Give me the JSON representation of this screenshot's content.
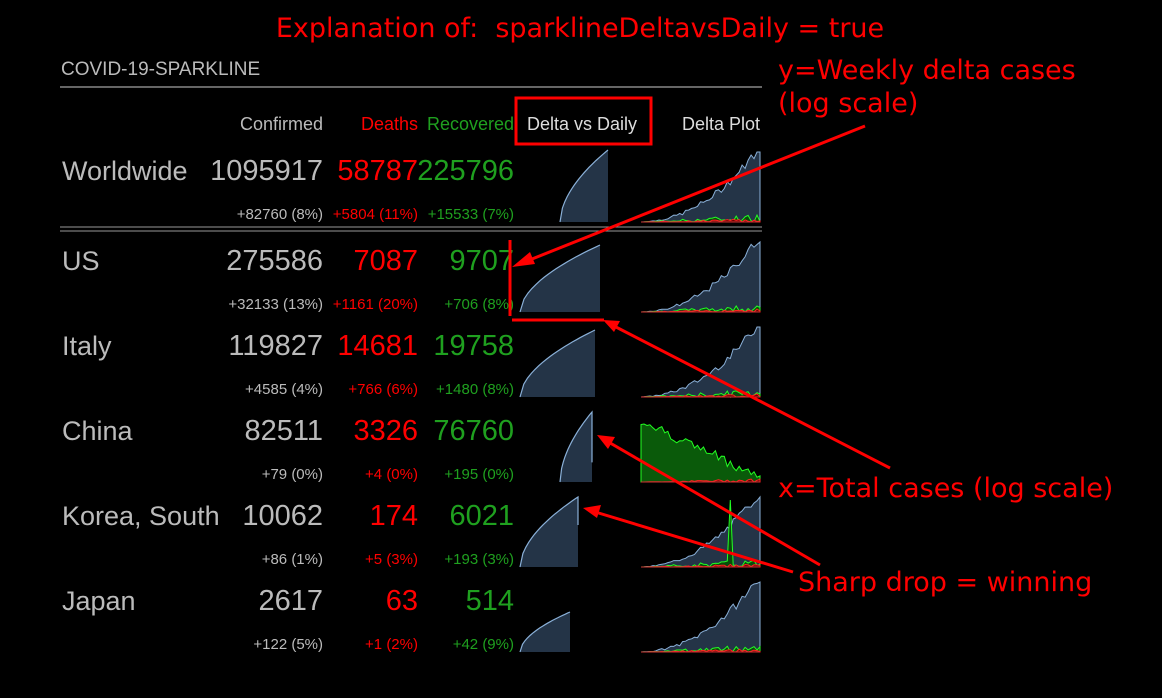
{
  "annotations": {
    "title": "Explanation of:  sparklineDeltavsDaily = true",
    "y_note": [
      "y=Weekly delta cases",
      "(log scale)"
    ],
    "x_note": "x=Total cases (log scale)",
    "drop_note": "Sharp drop = winning"
  },
  "module": {
    "title": "COVID-19-SPARKLINE",
    "columns": [
      "Confirmed",
      "Deaths",
      "Recovered",
      "Delta vs Daily",
      "Delta Plot"
    ],
    "rows": [
      {
        "country": "Worldwide",
        "confirmed": 1095917,
        "deaths": 58787,
        "recovered": 225796,
        "confirmed_change": "+82760 (8%)",
        "deaths_change": "+5804 (11%)",
        "recovered_change": "+15533 (7%)"
      },
      {
        "country": "US",
        "confirmed": 275586,
        "deaths": 7087,
        "recovered": 9707,
        "confirmed_change": "+32133 (13%)",
        "deaths_change": "+1161 (20%)",
        "recovered_change": "+706 (8%)"
      },
      {
        "country": "Italy",
        "confirmed": 119827,
        "deaths": 14681,
        "recovered": 19758,
        "confirmed_change": "+4585 (4%)",
        "deaths_change": "+766 (6%)",
        "recovered_change": "+1480 (8%)"
      },
      {
        "country": "China",
        "confirmed": 82511,
        "deaths": 3326,
        "recovered": 76760,
        "confirmed_change": "+79 (0%)",
        "deaths_change": "+4 (0%)",
        "recovered_change": "+195 (0%)"
      },
      {
        "country": "Korea, South",
        "confirmed": 10062,
        "deaths": 174,
        "recovered": 6021,
        "confirmed_change": "+86 (1%)",
        "deaths_change": "+5 (3%)",
        "recovered_change": "+193 (3%)"
      },
      {
        "country": "Japan",
        "confirmed": 2617,
        "deaths": 63,
        "recovered": 514,
        "confirmed_change": "+122 (5%)",
        "deaths_change": "+1 (2%)",
        "recovered_change": "+42 (9%)"
      }
    ]
  }
}
